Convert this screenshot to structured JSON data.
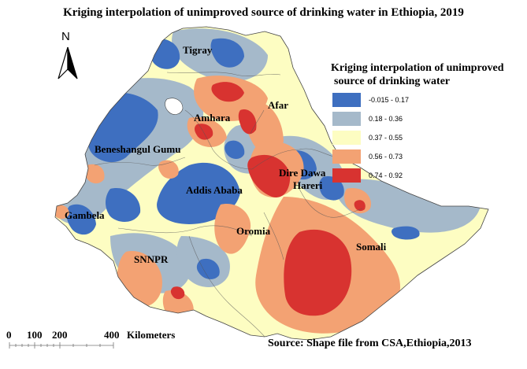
{
  "title": "Kriging interpolation of unimproved source of drinking water in Ethiopia, 2019",
  "north_arrow": {
    "label": "N",
    "icon": "north-arrow-icon"
  },
  "legend": {
    "title_line1": "Kriging interpolation of unimproved",
    "title_line2": "source of drinking water",
    "classes": [
      {
        "label": "-0.015 - 0.17",
        "color": "#3e6fc0"
      },
      {
        "label": "0.18 - 0.36",
        "color": "#a5b9ca"
      },
      {
        "label": "0.37 - 0.55",
        "color": "#fdfdc2"
      },
      {
        "label": "0.56 - 0.73",
        "color": "#f3a273"
      },
      {
        "label": "0.74 - 0.92",
        "color": "#d83330"
      }
    ]
  },
  "regions": {
    "tigray": "Tigray",
    "afar": "Afar",
    "amhara": "Amhara",
    "benishangul": "Beneshangul Gumu",
    "dire_dawa": "Dire Dawa",
    "harari": "Hareri",
    "addis_ababa": "Addis Ababa",
    "gambela": "Gambela",
    "oromia": "Oromia",
    "somali": "Somali",
    "snnpr": "SNNPR"
  },
  "scale": {
    "t0": "0",
    "t100": "100",
    "t200": "200",
    "t400": "400",
    "unit": "Kilometers"
  },
  "source": "Source: Shape file from CSA,Ethiopia,2013"
}
